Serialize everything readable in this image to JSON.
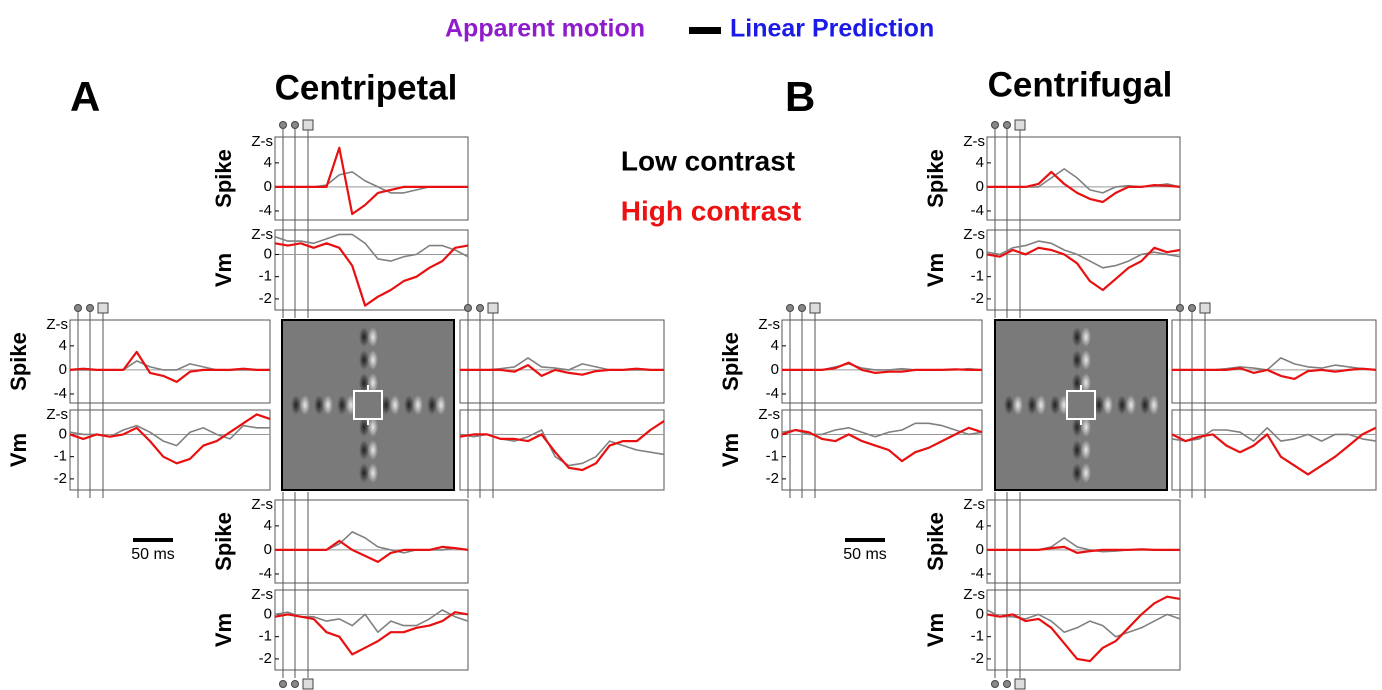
{
  "title": {
    "left": "Apparent motion",
    "right": "Linear Prediction"
  },
  "panels": [
    {
      "label": "A",
      "title": "Centripetal",
      "scale_bar": "50 ms"
    },
    {
      "label": "B",
      "title": "Centrifugal",
      "scale_bar": "50 ms"
    }
  ],
  "legend": [
    {
      "text": "Low contrast",
      "color": "#000000"
    },
    {
      "text": "High contrast",
      "color": "#ee1111"
    }
  ],
  "chart_data": [
    {
      "type": "line",
      "ylabel": "Spike",
      "yunit": "Z-s",
      "ylim": [
        -5.5,
        8.3
      ],
      "yticks": [
        4,
        0,
        -4
      ],
      "series": [
        {
          "color": "#808080",
          "values": [
            0,
            0,
            0,
            0,
            0.3,
            2,
            2.5,
            1,
            0,
            -1,
            -1,
            -0.5,
            0,
            0,
            0,
            0
          ]
        },
        {
          "color": "#e81010",
          "values": [
            0,
            0,
            0,
            0,
            0,
            6.5,
            -4.5,
            -3,
            -1,
            -0.5,
            0,
            0,
            0,
            0,
            0,
            0
          ]
        }
      ]
    },
    {
      "type": "line",
      "ylabel": "Vm",
      "yunit": "Z-s",
      "ylim": [
        -2.5,
        1.1
      ],
      "yticks": [
        0,
        -1,
        -2
      ],
      "series": [
        {
          "color": "#808080",
          "values": [
            0.8,
            0.6,
            0.6,
            0.5,
            0.7,
            0.9,
            0.9,
            0.5,
            -0.2,
            -0.3,
            -0.1,
            0,
            0.4,
            0.4,
            0.2,
            -0.1
          ]
        },
        {
          "color": "#e81010",
          "values": [
            0.5,
            0.4,
            0.5,
            0.3,
            0.5,
            0.3,
            -0.5,
            -2.3,
            -1.9,
            -1.6,
            -1.2,
            -1,
            -0.6,
            -0.3,
            0.3,
            0.4
          ]
        }
      ]
    },
    {
      "type": "line",
      "ylabel": "Spike",
      "yunit": "Z-s",
      "ylim": [
        -5.5,
        8.3
      ],
      "yticks": [
        4,
        0,
        -4
      ],
      "series": [
        {
          "color": "#808080",
          "values": [
            0,
            0,
            0,
            0,
            0,
            1.5,
            0.5,
            0,
            0,
            1,
            0.5,
            0,
            0,
            0,
            0,
            0
          ]
        },
        {
          "color": "#e81010",
          "values": [
            0,
            0.2,
            0,
            0,
            0,
            3,
            -0.5,
            -1,
            -2,
            -0.3,
            0,
            0,
            0,
            0.2,
            0,
            0
          ]
        }
      ]
    },
    {
      "type": "line",
      "ylabel": "Vm",
      "yunit": "Z-s",
      "ylim": [
        -2.5,
        1.1
      ],
      "yticks": [
        0,
        -1,
        -2
      ],
      "series": [
        {
          "color": "#808080",
          "values": [
            0.1,
            0,
            0,
            -0.1,
            0.2,
            0.4,
            0.1,
            -0.3,
            -0.5,
            0.1,
            0.3,
            0,
            -0.2,
            0.4,
            0.3,
            0.3
          ]
        },
        {
          "color": "#e81010",
          "values": [
            0,
            -0.2,
            0,
            -0.1,
            0,
            0.3,
            -0.3,
            -1,
            -1.3,
            -1.1,
            -0.5,
            -0.3,
            0.1,
            0.5,
            0.9,
            0.7
          ]
        }
      ]
    },
    {
      "type": "line",
      "ylim": [
        -5.5,
        8.3
      ],
      "yticks": [],
      "series": [
        {
          "color": "#808080",
          "values": [
            0,
            0,
            0,
            0.2,
            0.5,
            2,
            0.5,
            0.3,
            0,
            1,
            0.5,
            0,
            0,
            0,
            0,
            0
          ]
        },
        {
          "color": "#e81010",
          "values": [
            0,
            0,
            0,
            0,
            -0.3,
            0.8,
            -1,
            0,
            -0.5,
            -0.8,
            -0.2,
            0,
            0,
            0.2,
            0,
            0
          ]
        }
      ]
    },
    {
      "type": "line",
      "ylim": [
        -2.5,
        1.1
      ],
      "yticks": [],
      "series": [
        {
          "color": "#808080",
          "values": [
            0,
            -0.1,
            0,
            -0.2,
            -0.3,
            -0.1,
            0.2,
            -1,
            -1.4,
            -1.3,
            -1,
            -0.3,
            -0.5,
            -0.7,
            -0.8,
            -0.9
          ]
        },
        {
          "color": "#e81010",
          "values": [
            -0.1,
            0,
            0,
            -0.2,
            -0.2,
            -0.3,
            0,
            -0.8,
            -1.5,
            -1.6,
            -1.3,
            -0.5,
            -0.3,
            -0.3,
            0.2,
            0.6
          ]
        }
      ]
    },
    {
      "type": "line",
      "ylabel": "Spike",
      "yunit": "Z-s",
      "ylim": [
        -5.5,
        8.3
      ],
      "yticks": [
        4,
        0,
        -4
      ],
      "series": [
        {
          "color": "#808080",
          "values": [
            0,
            0,
            0,
            0,
            0,
            1,
            3,
            2,
            0.5,
            0,
            -0.5,
            0,
            0,
            0,
            0.3,
            0
          ]
        },
        {
          "color": "#e81010",
          "values": [
            0,
            0,
            0,
            0,
            0,
            1.5,
            0,
            -1,
            -2,
            -0.5,
            0,
            0,
            0,
            0.5,
            0.3,
            0
          ]
        }
      ]
    },
    {
      "type": "line",
      "ylabel": "Vm",
      "yunit": "Z-s",
      "ylim": [
        -2.5,
        1.1
      ],
      "yticks": [
        0,
        -1,
        -2
      ],
      "series": [
        {
          "color": "#808080",
          "values": [
            0,
            0.1,
            -0.1,
            -0.1,
            -0.3,
            -0.2,
            -0.5,
            0,
            -0.8,
            -0.3,
            -0.5,
            -0.5,
            -0.2,
            0.2,
            -0.1,
            -0.3
          ]
        },
        {
          "color": "#e81010",
          "values": [
            -0.1,
            0,
            -0.1,
            -0.2,
            -0.8,
            -1,
            -1.8,
            -1.5,
            -1.2,
            -0.8,
            -0.8,
            -0.6,
            -0.5,
            -0.3,
            0.1,
            0
          ]
        }
      ]
    },
    {
      "type": "line",
      "ylabel": "Spike",
      "yunit": "Z-s",
      "ylim": [
        -5.5,
        8.3
      ],
      "yticks": [
        4,
        0,
        -4
      ],
      "series": [
        {
          "color": "#808080",
          "values": [
            0,
            0,
            0,
            0,
            0,
            1.5,
            3,
            1.5,
            -0.5,
            -1,
            0,
            0.2,
            0,
            0.2,
            0.5,
            0
          ]
        },
        {
          "color": "#e81010",
          "values": [
            0,
            0,
            0,
            0,
            0.5,
            2.5,
            0.5,
            -1,
            -2,
            -2.5,
            -1,
            0,
            0,
            0.3,
            0.2,
            0
          ]
        }
      ]
    },
    {
      "type": "line",
      "ylabel": "Vm",
      "yunit": "Z-s",
      "ylim": [
        -2.5,
        1.1
      ],
      "yticks": [
        0,
        -1,
        -2
      ],
      "series": [
        {
          "color": "#808080",
          "values": [
            0.1,
            0,
            0.3,
            0.4,
            0.6,
            0.5,
            0.2,
            0,
            -0.3,
            -0.6,
            -0.5,
            -0.3,
            0,
            0.1,
            0,
            -0.1
          ]
        },
        {
          "color": "#e81010",
          "values": [
            0,
            -0.1,
            0.2,
            0,
            0.3,
            0.2,
            0,
            -0.4,
            -1.2,
            -1.6,
            -1.1,
            -0.6,
            -0.3,
            0.3,
            0.1,
            0.2
          ]
        }
      ]
    },
    {
      "type": "line",
      "ylabel": "Spike",
      "yunit": "Z-s",
      "ylim": [
        -5.5,
        8.3
      ],
      "yticks": [
        4,
        0,
        -4
      ],
      "series": [
        {
          "color": "#808080",
          "values": [
            0,
            0,
            0,
            0,
            0.5,
            1,
            0.3,
            0,
            0,
            0.2,
            0,
            0,
            0,
            0,
            0.2,
            0
          ]
        },
        {
          "color": "#e81010",
          "values": [
            0,
            0,
            0,
            0,
            0.3,
            1.2,
            0,
            -0.5,
            -0.3,
            -0.3,
            0,
            0,
            0,
            0.1,
            0,
            0
          ]
        }
      ]
    },
    {
      "type": "line",
      "ylabel": "Vm",
      "yunit": "Z-s",
      "ylim": [
        -2.5,
        1.1
      ],
      "yticks": [
        0,
        -1,
        -2
      ],
      "series": [
        {
          "color": "#808080",
          "values": [
            0.1,
            0.2,
            0,
            0,
            0.2,
            0.3,
            0.1,
            -0.1,
            0.1,
            0.2,
            0.5,
            0.5,
            0.4,
            0.2,
            0,
            0.1
          ]
        },
        {
          "color": "#e81010",
          "values": [
            0,
            0.2,
            0.1,
            -0.2,
            -0.3,
            0,
            -0.3,
            -0.5,
            -0.7,
            -1.2,
            -0.8,
            -0.6,
            -0.3,
            0,
            0.3,
            0.1
          ]
        }
      ]
    },
    {
      "type": "line",
      "ylim": [
        -5.5,
        8.3
      ],
      "yticks": [],
      "series": [
        {
          "color": "#808080",
          "values": [
            0,
            0,
            0,
            0,
            0.2,
            0.5,
            0.3,
            0,
            2,
            1,
            0.5,
            0.3,
            0.8,
            0.5,
            0.2,
            0
          ]
        },
        {
          "color": "#e81010",
          "values": [
            0,
            0,
            0,
            0,
            0,
            0.3,
            -0.5,
            0,
            -1,
            -1.5,
            -0.2,
            0,
            -0.3,
            0,
            0.2,
            0
          ]
        }
      ]
    },
    {
      "type": "line",
      "ylim": [
        -2.5,
        1.1
      ],
      "yticks": [],
      "series": [
        {
          "color": "#808080",
          "values": [
            -0.2,
            -0.3,
            -0.2,
            0.2,
            0.2,
            0.1,
            -0.3,
            0.3,
            -0.3,
            -0.2,
            0,
            -0.3,
            0,
            0,
            -0.2,
            -0.3
          ]
        },
        {
          "color": "#e81010",
          "values": [
            0,
            -0.3,
            -0.1,
            0,
            -0.5,
            -0.8,
            -0.5,
            0,
            -1,
            -1.4,
            -1.8,
            -1.4,
            -1,
            -0.5,
            0,
            0.3
          ]
        }
      ]
    },
    {
      "type": "line",
      "ylabel": "Spike",
      "yunit": "Z-s",
      "ylim": [
        -5.5,
        8.3
      ],
      "yticks": [
        4,
        0,
        -4
      ],
      "series": [
        {
          "color": "#808080",
          "values": [
            0,
            0,
            0,
            0,
            0,
            0.5,
            2,
            0.5,
            0,
            -0.3,
            -0.2,
            0,
            0,
            0,
            0,
            0
          ]
        },
        {
          "color": "#e81010",
          "values": [
            0,
            0,
            0,
            0,
            0,
            0.3,
            0.5,
            -0.5,
            -0.2,
            0,
            0,
            0,
            0.1,
            0,
            0,
            0
          ]
        }
      ]
    },
    {
      "type": "line",
      "ylabel": "Vm",
      "yunit": "Z-s",
      "ylim": [
        -2.5,
        1.1
      ],
      "yticks": [
        0,
        -1,
        -2
      ],
      "series": [
        {
          "color": "#808080",
          "values": [
            0.2,
            -0.1,
            -0.1,
            -0.2,
            0,
            -0.3,
            -0.8,
            -0.6,
            -0.3,
            -0.5,
            -1,
            -0.8,
            -0.6,
            -0.3,
            0,
            -0.2
          ]
        },
        {
          "color": "#e81010",
          "values": [
            0,
            -0.1,
            0,
            -0.3,
            -0.2,
            -0.6,
            -1.3,
            -2,
            -2.1,
            -1.5,
            -1.2,
            -0.6,
            0,
            0.5,
            0.8,
            0.7
          ]
        }
      ]
    }
  ]
}
